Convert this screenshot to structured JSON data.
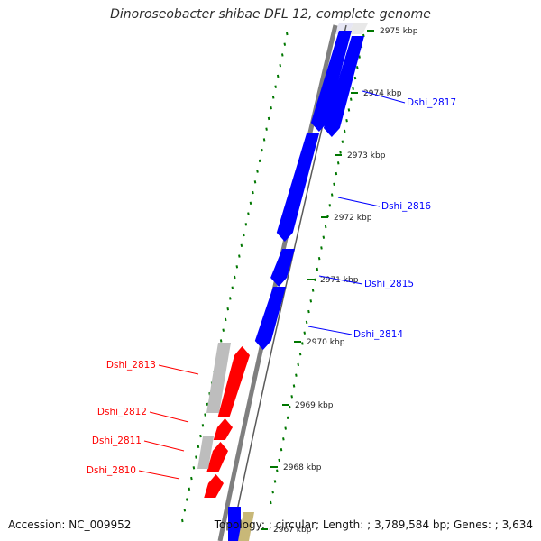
{
  "title": "Dinoroseobacter shibae DFL 12, complete genome",
  "footer": {
    "accession_label": "Accession:",
    "accession": "NC_009952",
    "topology_label": "Topology:",
    "topology": "circular",
    "length_label": "Length:",
    "length": "3,789,584 bp",
    "genes_label": "Genes:",
    "genes": "3,634"
  },
  "colors": {
    "forward_gene": "#0000ff",
    "reverse_gene": "#ff0000",
    "other_feature": "#bdbdbd",
    "tick": "#007700",
    "backbone": "#7f7f7f",
    "bottom_feature": "#c8b878"
  },
  "ticks": [
    {
      "label": "2967 kbp"
    },
    {
      "label": "2968 kbp"
    },
    {
      "label": "2969 kbp"
    },
    {
      "label": "2970 kbp"
    },
    {
      "label": "2971 kbp"
    },
    {
      "label": "2972 kbp"
    },
    {
      "label": "2973 kbp"
    },
    {
      "label": "2974 kbp"
    },
    {
      "label": "2975 kbp"
    }
  ],
  "genes": [
    {
      "label": "Dshi_2817",
      "strand": "forward"
    },
    {
      "label": "Dshi_2816",
      "strand": "forward"
    },
    {
      "label": "Dshi_2815",
      "strand": "forward"
    },
    {
      "label": "Dshi_2814",
      "strand": "forward"
    },
    {
      "label": "Dshi_2813",
      "strand": "reverse"
    },
    {
      "label": "Dshi_2812",
      "strand": "reverse"
    },
    {
      "label": "Dshi_2811",
      "strand": "reverse"
    },
    {
      "label": "Dshi_2810",
      "strand": "reverse"
    }
  ]
}
